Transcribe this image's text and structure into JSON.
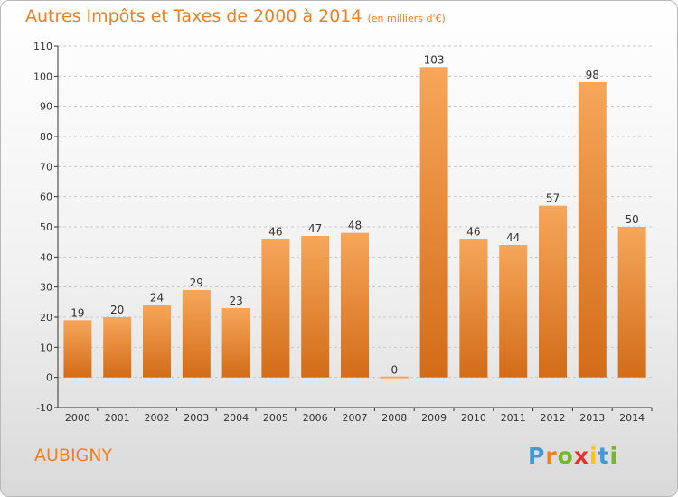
{
  "header": {
    "title": "Autres Impôts et Taxes de 2000 à 2014",
    "unit": "(en milliers d'€)"
  },
  "footer": {
    "city": "AUBIGNY",
    "logo_letters": [
      "P",
      "r",
      "o",
      "x",
      "i",
      "t",
      "i"
    ],
    "logo_colors": [
      "#3f9ad7",
      "#f07f21",
      "#76b82a",
      "#e5342b",
      "#f9c31a",
      "#3f9ad7",
      "#76b82a"
    ]
  },
  "colors": {
    "title": "#f07f21",
    "bar_top": "#f6a65a",
    "bar_bottom": "#d26c18",
    "axis": "#333333",
    "grid": "#c8c8c8"
  },
  "chart_data": {
    "type": "bar",
    "categories": [
      "2000",
      "2001",
      "2002",
      "2003",
      "2004",
      "2005",
      "2006",
      "2007",
      "2008",
      "2009",
      "2010",
      "2011",
      "2012",
      "2013",
      "2014"
    ],
    "values": [
      19,
      20,
      24,
      29,
      23,
      46,
      47,
      48,
      0,
      103,
      46,
      44,
      57,
      98,
      50
    ],
    "title": "Autres Impôts et Taxes de 2000 à 2014",
    "subtitle": "(en milliers d'€)",
    "ylim": [
      -10,
      110
    ],
    "yticks": [
      -10,
      0,
      10,
      20,
      30,
      40,
      50,
      60,
      70,
      80,
      90,
      100,
      110
    ],
    "grid": true,
    "grid_style": "dashed horizontal"
  }
}
